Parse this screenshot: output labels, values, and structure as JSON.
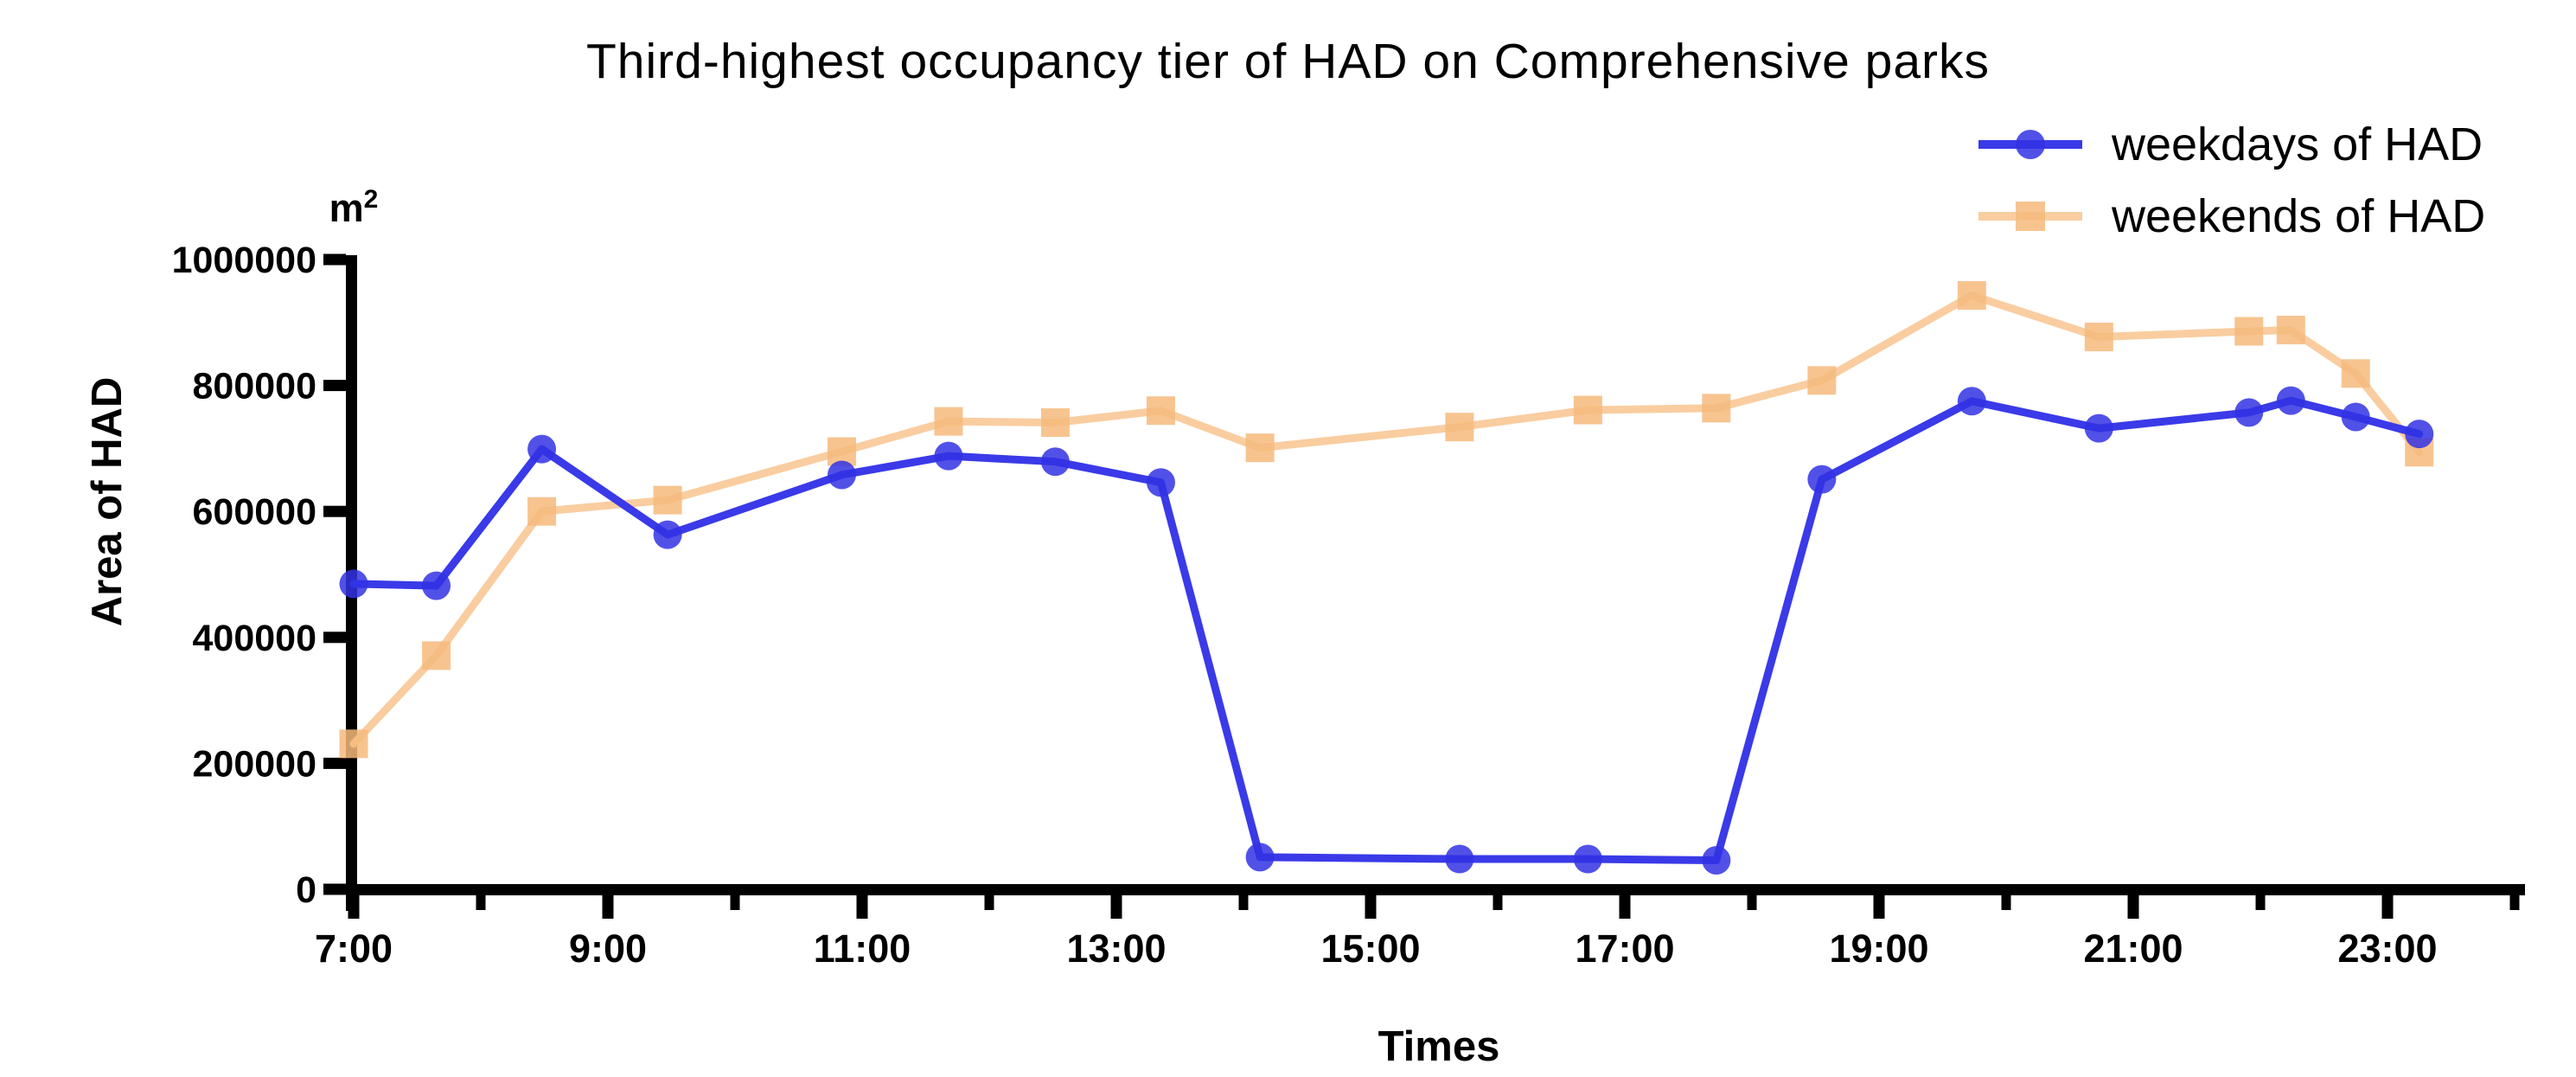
{
  "chart_data": {
    "type": "line",
    "title": "Third-highest occupancy tier of HAD on Comprehensive parks",
    "xlabel": "Times",
    "ylabel": "Area of HAD",
    "y_unit": "m²",
    "ylim": [
      0,
      1000000
    ],
    "xlim_hours": [
      6.95,
      24.1
    ],
    "grid": false,
    "legend_position": "top-right",
    "y_ticks": [
      0,
      200000,
      400000,
      600000,
      800000,
      1000000
    ],
    "y_tick_labels": [
      "0",
      "200000",
      "400000",
      "600000",
      "800000",
      "1000000"
    ],
    "x_major_tick_hours": [
      7,
      9,
      11,
      13,
      15,
      17,
      19,
      21,
      23
    ],
    "x_tick_labels": [
      "7:00",
      "9:00",
      "11:00",
      "13:00",
      "15:00",
      "17:00",
      "19:00",
      "21:00",
      "23:00"
    ],
    "x_minor_tick_hours": [
      8,
      10,
      12,
      14,
      16,
      18,
      20,
      22,
      24
    ],
    "x_hours": [
      7.0,
      7.65,
      8.48,
      9.47,
      10.84,
      11.68,
      12.52,
      13.35,
      14.13,
      15.7,
      16.71,
      17.72,
      18.55,
      19.73,
      20.73,
      21.91,
      22.24,
      22.75,
      23.25
    ],
    "approx_times": [
      "7:00",
      "7:40",
      "8:30",
      "9:30",
      "10:50",
      "11:40",
      "12:30",
      "13:20",
      "14:10",
      "15:40",
      "16:45",
      "17:45",
      "18:35",
      "19:45",
      "20:45",
      "21:55",
      "22:15",
      "22:45",
      "23:15"
    ],
    "series": [
      {
        "name": "weekdays of HAD",
        "marker": "circle",
        "line_color": "#3a3ae8",
        "marker_color": "#3333e4",
        "values": [
          485000,
          482000,
          699000,
          563000,
          658000,
          688000,
          679000,
          646000,
          51000,
          48000,
          48000,
          46000,
          651000,
          775000,
          732000,
          757000,
          776000,
          750000,
          723000
        ]
      },
      {
        "name": "weekends of HAD",
        "marker": "square",
        "line_color": "#f9cda0",
        "marker_color": "#f6ba7d",
        "values": [
          231000,
          371000,
          600000,
          618000,
          695000,
          743000,
          741000,
          760000,
          701000,
          734000,
          761000,
          764000,
          808000,
          943000,
          877000,
          886000,
          888000,
          819000,
          694000
        ]
      }
    ]
  },
  "colors": {
    "axis": "#000000",
    "text": "#000000",
    "background": "#ffffff"
  }
}
